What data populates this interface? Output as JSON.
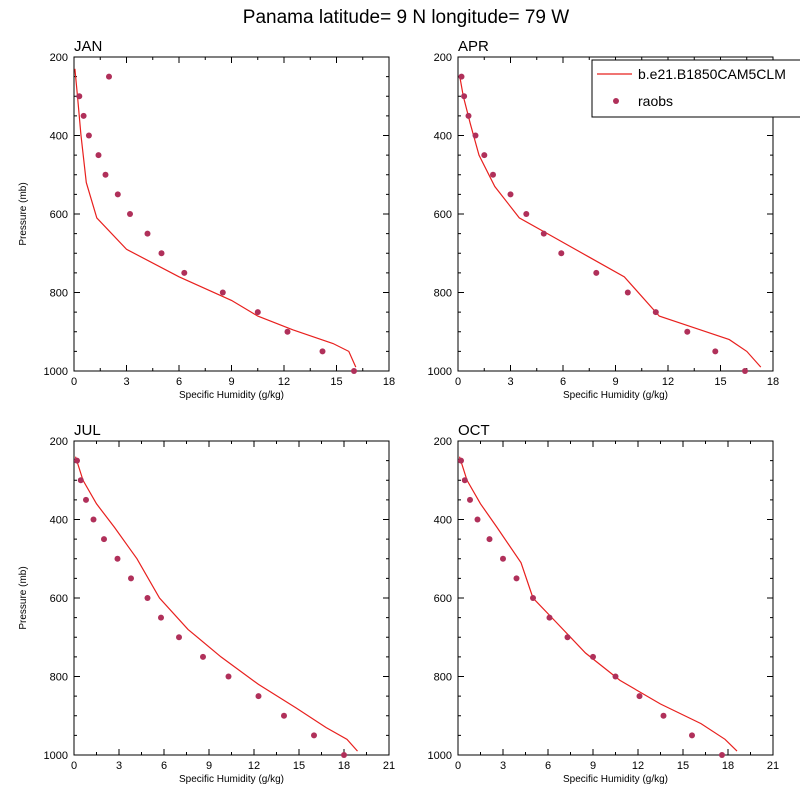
{
  "figure": {
    "title": "Panama  latitude= 9 N longitude= 79 W"
  },
  "colors": {
    "model_line": "#e8201e",
    "obs_marker": "#b0305a",
    "axis": "#000000"
  },
  "legend": {
    "placement": "top-right",
    "entries": [
      "b.e21.B1850CAM5CLM",
      "raobs"
    ]
  },
  "chart_data": [
    {
      "type": "line",
      "title": "JAN",
      "xlabel": "Specific Humidity (g/kg)",
      "ylabel": "Pressure (mb)",
      "xlim": [
        0,
        18
      ],
      "ylim": [
        1000,
        200
      ],
      "y_reversed": true,
      "xticks": [
        0,
        3,
        6,
        9,
        12,
        15,
        18
      ],
      "yticks": [
        200,
        400,
        600,
        800,
        1000
      ],
      "series": [
        {
          "name": "b.e21.B1850CAM5CLM",
          "kind": "line",
          "x": [
            0.05,
            0.2,
            0.4,
            0.7,
            1.3,
            3.0,
            6.0,
            9.0,
            10.5,
            12.5,
            14.8,
            15.7,
            16.1
          ],
          "y": [
            230,
            300,
            400,
            520,
            610,
            690,
            760,
            820,
            860,
            895,
            930,
            950,
            990
          ]
        },
        {
          "name": "raobs",
          "kind": "scatter",
          "x": [
            2.0,
            0.3,
            0.55,
            0.85,
            1.4,
            1.8,
            2.5,
            3.2,
            4.2,
            5.0,
            6.3,
            8.5,
            10.5,
            12.2,
            14.2,
            16.0
          ],
          "y": [
            250,
            300,
            350,
            400,
            450,
            500,
            550,
            600,
            650,
            700,
            750,
            800,
            850,
            900,
            950,
            1000
          ]
        }
      ]
    },
    {
      "type": "line",
      "title": "APR",
      "xlabel": "Specific Humidity (g/kg)",
      "ylabel": "",
      "xlim": [
        0,
        18
      ],
      "ylim": [
        1000,
        200
      ],
      "y_reversed": true,
      "xticks": [
        0,
        3,
        6,
        9,
        12,
        15,
        18
      ],
      "yticks": [
        200,
        400,
        600,
        800,
        1000
      ],
      "series": [
        {
          "name": "b.e21.B1850CAM5CLM",
          "kind": "line",
          "x": [
            0.1,
            0.3,
            0.7,
            1.2,
            2.1,
            3.5,
            5.5,
            7.5,
            9.5,
            11.5,
            13.5,
            15.5,
            16.5,
            17.3
          ],
          "y": [
            250,
            300,
            370,
            450,
            530,
            610,
            660,
            710,
            760,
            860,
            890,
            920,
            950,
            990
          ]
        },
        {
          "name": "raobs",
          "kind": "scatter",
          "x": [
            0.2,
            0.35,
            0.6,
            1.0,
            1.5,
            2.0,
            3.0,
            3.9,
            4.9,
            5.9,
            7.9,
            9.7,
            11.3,
            13.1,
            14.7,
            16.4
          ],
          "y": [
            250,
            300,
            350,
            400,
            450,
            500,
            550,
            600,
            650,
            700,
            750,
            800,
            850,
            900,
            950,
            1000
          ]
        }
      ]
    },
    {
      "type": "line",
      "title": "JUL",
      "xlabel": "Specific Humidity (g/kg)",
      "ylabel": "Pressure (mb)",
      "xlim": [
        0,
        21
      ],
      "ylim": [
        1000,
        200
      ],
      "y_reversed": true,
      "xticks": [
        0,
        3,
        6,
        9,
        12,
        15,
        18,
        21
      ],
      "yticks": [
        200,
        400,
        600,
        800,
        1000
      ],
      "series": [
        {
          "name": "b.e21.B1850CAM5CLM",
          "kind": "line",
          "x": [
            0.1,
            0.6,
            1.5,
            2.7,
            4.2,
            5.7,
            7.6,
            9.8,
            12.3,
            14.8,
            16.8,
            18.2,
            18.9
          ],
          "y": [
            240,
            300,
            360,
            420,
            500,
            600,
            680,
            750,
            820,
            880,
            930,
            960,
            990
          ]
        },
        {
          "name": "raobs",
          "kind": "scatter",
          "x": [
            0.2,
            0.45,
            0.8,
            1.3,
            2.0,
            2.9,
            3.8,
            4.9,
            5.8,
            7.0,
            8.6,
            10.3,
            12.3,
            14.0,
            16.0,
            18.0
          ],
          "y": [
            250,
            300,
            350,
            400,
            450,
            500,
            550,
            600,
            650,
            700,
            750,
            800,
            850,
            900,
            950,
            1000
          ]
        }
      ]
    },
    {
      "type": "line",
      "title": "OCT",
      "xlabel": "Specific Humidity (g/kg)",
      "ylabel": "",
      "xlim": [
        0,
        21
      ],
      "ylim": [
        1000,
        200
      ],
      "y_reversed": true,
      "xticks": [
        0,
        3,
        6,
        9,
        12,
        15,
        18,
        21
      ],
      "yticks": [
        200,
        400,
        600,
        800,
        1000
      ],
      "series": [
        {
          "name": "b.e21.B1850CAM5CLM",
          "kind": "line",
          "x": [
            0.1,
            0.6,
            1.5,
            2.6,
            4.2,
            5.0,
            6.5,
            8.5,
            10.8,
            13.5,
            16.2,
            17.8,
            18.6
          ],
          "y": [
            240,
            300,
            360,
            420,
            510,
            600,
            660,
            740,
            810,
            870,
            920,
            960,
            990
          ]
        },
        {
          "name": "raobs",
          "kind": "scatter",
          "x": [
            0.2,
            0.45,
            0.8,
            1.3,
            2.1,
            3.0,
            3.9,
            5.0,
            6.1,
            7.3,
            9.0,
            10.5,
            12.1,
            13.7,
            15.6,
            17.6
          ],
          "y": [
            250,
            300,
            350,
            400,
            450,
            500,
            550,
            600,
            650,
            700,
            750,
            800,
            850,
            900,
            950,
            1000
          ]
        }
      ]
    }
  ]
}
